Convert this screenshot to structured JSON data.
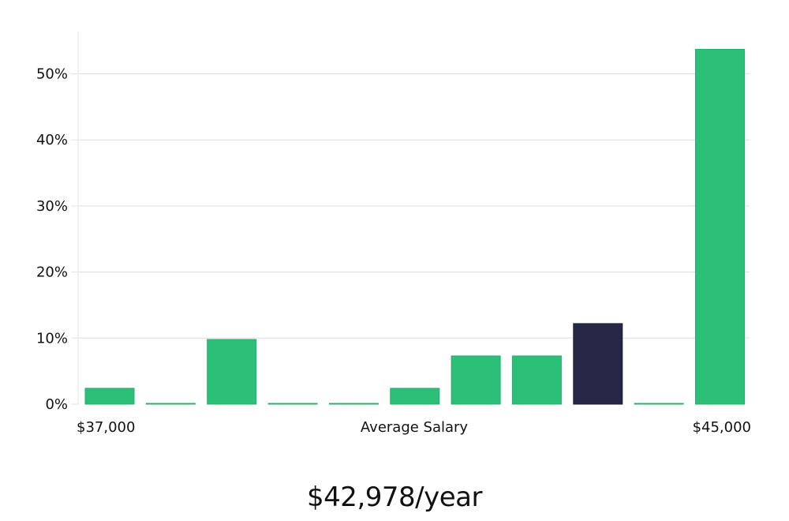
{
  "chart_data": {
    "type": "bar",
    "xlabel": "Average Salary",
    "x_range_labels": {
      "min": "$37,000",
      "max": "$45,000"
    },
    "ylim": [
      0,
      56
    ],
    "yticks": [
      0,
      10,
      20,
      30,
      40,
      50
    ],
    "ytick_labels": [
      "0%",
      "10%",
      "20%",
      "30%",
      "40%",
      "50%"
    ],
    "grid": true,
    "bin_count": 11,
    "values": [
      2.4,
      0.1,
      9.8,
      0.1,
      0.1,
      2.4,
      7.3,
      7.3,
      12.2,
      0.1,
      53.7
    ],
    "highlight_index": 8,
    "colors": {
      "bar": "#2bbf78",
      "highlight": "#272646"
    }
  },
  "summary": {
    "salary_text": "$42,978/year"
  }
}
